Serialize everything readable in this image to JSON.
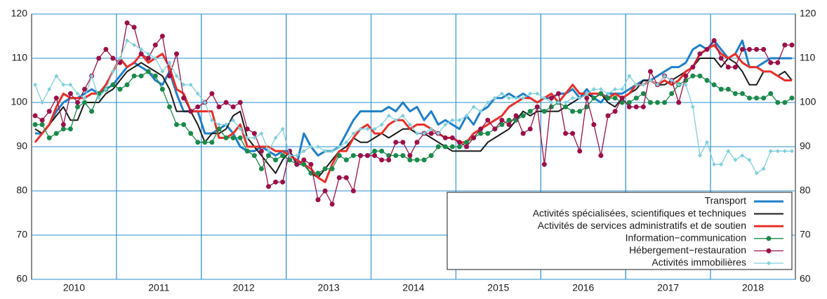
{
  "chart_data": {
    "type": "line",
    "categories": [
      null,
      null,
      null,
      null,
      null,
      null,
      "2010",
      null,
      null,
      null,
      null,
      null,
      null,
      null,
      null,
      null,
      null,
      null,
      "2011",
      null,
      null,
      null,
      null,
      null,
      null,
      null,
      null,
      null,
      null,
      null,
      "2012",
      null,
      null,
      null,
      null,
      null,
      null,
      null,
      null,
      null,
      null,
      null,
      "2013",
      null,
      null,
      null,
      null,
      null,
      null,
      null,
      null,
      null,
      null,
      null,
      "2014",
      null,
      null,
      null,
      null,
      null,
      null,
      null,
      null,
      null,
      null,
      null,
      "2015",
      null,
      null,
      null,
      null,
      null,
      null,
      null,
      null,
      null,
      null,
      null,
      "2016",
      null,
      null,
      null,
      null,
      null,
      null,
      null,
      null,
      null,
      null,
      null,
      "2017",
      null,
      null,
      null,
      null,
      null,
      null,
      null,
      null,
      null,
      null,
      null,
      "2018",
      null,
      null,
      null,
      null,
      null
    ],
    "ylim": [
      60,
      120
    ],
    "yticks": [
      60,
      70,
      80,
      90,
      100,
      110,
      120
    ],
    "y2lim": [
      60,
      120
    ],
    "y2ticks": [
      60,
      70,
      80,
      90,
      100,
      110,
      120
    ],
    "grid": true,
    "legend": "bottom-right",
    "series": [
      {
        "name": "Transport",
        "color": "#1f7fc9",
        "line_width": 3,
        "marker": null,
        "values": [
          93,
          93,
          95,
          98,
          100,
          101,
          101,
          102,
          103,
          102,
          103,
          104,
          106,
          108,
          109,
          108,
          107,
          105,
          104,
          107,
          102,
          98,
          98,
          98,
          93,
          93,
          94,
          95,
          93,
          90,
          89,
          89,
          90,
          89,
          88,
          89,
          89,
          86,
          93,
          90,
          88,
          89,
          89,
          90,
          93,
          96,
          98,
          98,
          98,
          98,
          99,
          98,
          100,
          98,
          99,
          96,
          98,
          95,
          96,
          95,
          94,
          97,
          95,
          98,
          99,
          101,
          101,
          102,
          101,
          102,
          101,
          100,
          101,
          101,
          102,
          102,
          103,
          101,
          103,
          101,
          100,
          102,
          102,
          102,
          103,
          104,
          105,
          105,
          106,
          107,
          108,
          108,
          109,
          112,
          113,
          112,
          114,
          112,
          110,
          111,
          114,
          108,
          108,
          109,
          110,
          110,
          110,
          110
        ]
      },
      {
        "name": "Activités spécialisées, scientifiques et techniques",
        "color": "#1a1a1a",
        "line_width": 2,
        "marker": null,
        "values": [
          94,
          93,
          95,
          97,
          99,
          96,
          96,
          100,
          100,
          100,
          102,
          103,
          105,
          107,
          108,
          109,
          108,
          107,
          106,
          103,
          98,
          98,
          98,
          95,
          91,
          93,
          93,
          94,
          97,
          98,
          92,
          90,
          88,
          86,
          84,
          87,
          89,
          86,
          86,
          84,
          83,
          85,
          87,
          89,
          90,
          92,
          91,
          91,
          92,
          93,
          92,
          93,
          94,
          94,
          93,
          93,
          92,
          91,
          90,
          89,
          89,
          89,
          89,
          89,
          91,
          92,
          93,
          94,
          96,
          98,
          97,
          98,
          98,
          98,
          98,
          99,
          100,
          101,
          102,
          101,
          102,
          100,
          99,
          101,
          102,
          103,
          105,
          105,
          104,
          104,
          105,
          106,
          107,
          108,
          110,
          110,
          110,
          108,
          110,
          109,
          107,
          104,
          104,
          107,
          107,
          106,
          107,
          105
        ]
      },
      {
        "name": "Activités de services administratifs et de soutien",
        "color": "#e8302a",
        "line_width": 3,
        "marker": null,
        "values": [
          91,
          93,
          95,
          99,
          102,
          101,
          101,
          101,
          102,
          102,
          104,
          107,
          110,
          108,
          109,
          111,
          109,
          110,
          111,
          108,
          103,
          102,
          98,
          98,
          98,
          98,
          92,
          92,
          93,
          95,
          90,
          90,
          90,
          90,
          89,
          89,
          88,
          87,
          86,
          85,
          83,
          82,
          86,
          89,
          89,
          92,
          94,
          95,
          93,
          93,
          95,
          96,
          96,
          94,
          95,
          95,
          94,
          93,
          92,
          92,
          91,
          91,
          93,
          94,
          95,
          96,
          97,
          99,
          100,
          101,
          101,
          100,
          101,
          102,
          100,
          102,
          104,
          102,
          102,
          102,
          102,
          101,
          102,
          101,
          102,
          104,
          104,
          105,
          104,
          105,
          104,
          105,
          107,
          108,
          111,
          112,
          113,
          111,
          110,
          111,
          109,
          108,
          108,
          107,
          107,
          106,
          105,
          105
        ]
      },
      {
        "name": "Information−communication",
        "color": "#1a8a4a",
        "line_width": 1.3,
        "marker": "circle",
        "values": [
          95,
          95,
          92,
          93,
          94,
          94,
          99,
          100,
          98,
          102,
          103,
          104,
          103,
          104,
          106,
          106,
          107,
          106,
          103,
          99,
          95,
          95,
          93,
          91,
          91,
          91,
          94,
          92,
          92,
          92,
          89,
          88,
          85,
          88,
          87,
          88,
          87,
          86,
          86,
          84,
          84,
          85,
          85,
          88,
          87,
          88,
          88,
          88,
          89,
          89,
          88,
          88,
          88,
          87,
          87,
          87,
          88,
          90,
          90,
          90,
          90,
          91,
          92,
          93,
          93,
          94,
          95,
          96,
          96,
          97,
          98,
          99,
          98,
          99,
          100,
          99,
          98,
          98,
          99,
          101,
          102,
          101,
          101,
          100,
          100,
          101,
          102,
          100,
          100,
          100,
          102,
          104,
          105,
          106,
          106,
          105,
          104,
          103,
          103,
          102,
          102,
          101,
          101,
          101,
          102,
          100,
          100,
          101
        ]
      },
      {
        "name": "Hébergement−restauration",
        "color": "#9b1048",
        "line_width": 1.3,
        "marker": "circle",
        "values": [
          97,
          96,
          98,
          101,
          95,
          102,
          100,
          103,
          106,
          110,
          112,
          110,
          109,
          118,
          117,
          111,
          110,
          113,
          115,
          106,
          111,
          101,
          98,
          99,
          100,
          102,
          99,
          100,
          99,
          100,
          94,
          93,
          89,
          81,
          82,
          82,
          89,
          86,
          87,
          86,
          78,
          80,
          77,
          83,
          83,
          80,
          88,
          88,
          88,
          87,
          87,
          91,
          91,
          88,
          91,
          93,
          93,
          93,
          92,
          92,
          91,
          90,
          92,
          94,
          96,
          94,
          96,
          95,
          97,
          93,
          94,
          99,
          86,
          101,
          102,
          93,
          93,
          89,
          101,
          95,
          88,
          97,
          98,
          101,
          99,
          99,
          99,
          107,
          104,
          106,
          105,
          100,
          106,
          108,
          111,
          112,
          114,
          110,
          108,
          108,
          112,
          112,
          112,
          112,
          109,
          109,
          113,
          113
        ]
      },
      {
        "name": "Activités immobilières",
        "color": "#7fcfdc",
        "line_width": 1.3,
        "marker": "diamond",
        "values": [
          104,
          100,
          103,
          106,
          104,
          104,
          102,
          101,
          106,
          101,
          103,
          107,
          110,
          114,
          113,
          112,
          111,
          110,
          107,
          109,
          106,
          104,
          104,
          102,
          100,
          96,
          95,
          95,
          96,
          94,
          92,
          92,
          93,
          89,
          92,
          94,
          88,
          88,
          89,
          90,
          90,
          89,
          89,
          90,
          91,
          93,
          94,
          94,
          94,
          95,
          97,
          96,
          97,
          95,
          93,
          93,
          94,
          93,
          95,
          96,
          96,
          97,
          99,
          98,
          100,
          101,
          102,
          101,
          101,
          101,
          102,
          102,
          101,
          100,
          100,
          100,
          101,
          101,
          102,
          103,
          103,
          102,
          103,
          103,
          106,
          104,
          104,
          105,
          104,
          106,
          105,
          104,
          104,
          99,
          88,
          91,
          86,
          86,
          89,
          87,
          88,
          87,
          84,
          85,
          89,
          89,
          89,
          89
        ]
      }
    ]
  }
}
